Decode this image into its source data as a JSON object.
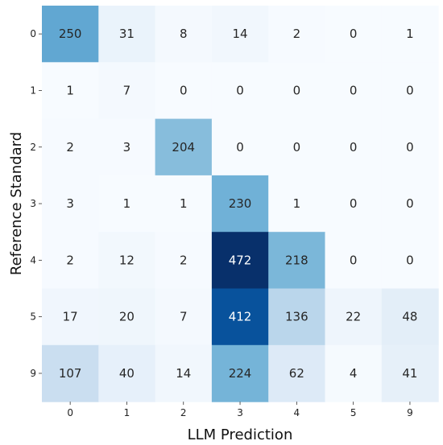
{
  "chart_data": {
    "type": "heatmap",
    "title": "",
    "xlabel": "LLM Prediction",
    "ylabel": "Reference Standard",
    "x_categories": [
      "0",
      "1",
      "2",
      "3",
      "4",
      "5",
      "9"
    ],
    "y_categories": [
      "0",
      "1",
      "2",
      "3",
      "4",
      "5",
      "9"
    ],
    "values": [
      [
        250,
        31,
        8,
        14,
        2,
        0,
        1
      ],
      [
        1,
        7,
        0,
        0,
        0,
        0,
        0
      ],
      [
        2,
        3,
        204,
        0,
        0,
        0,
        0
      ],
      [
        3,
        1,
        1,
        230,
        1,
        0,
        0
      ],
      [
        2,
        12,
        2,
        472,
        218,
        0,
        0
      ],
      [
        17,
        20,
        7,
        412,
        136,
        22,
        48
      ],
      [
        107,
        40,
        14,
        224,
        62,
        4,
        41
      ]
    ],
    "value_range": [
      0,
      472
    ],
    "colormap": "Blues",
    "grid": false,
    "legend": "none"
  }
}
